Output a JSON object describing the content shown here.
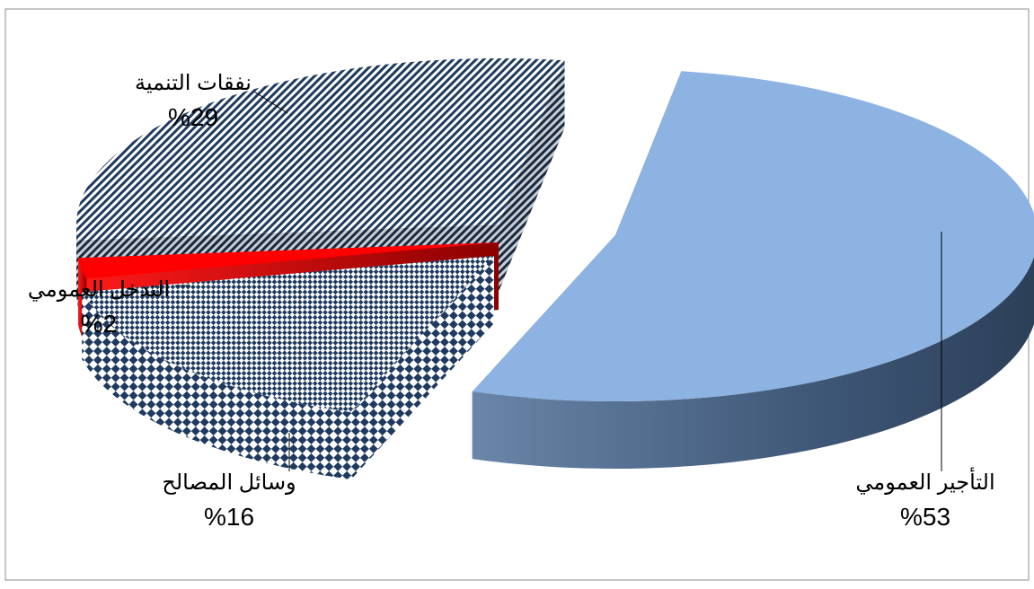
{
  "chart_data": {
    "type": "pie",
    "title": "",
    "slices": [
      {
        "label": "التأجير العمومي",
        "value": 53,
        "value_label": "%53",
        "color": "#8db3e2",
        "pattern": "solid"
      },
      {
        "label": "وسائل المصالح",
        "value": 16,
        "value_label": "%16",
        "color": "#1f3a5f",
        "pattern": "checker"
      },
      {
        "label": "التدخل العمومي",
        "value": 2,
        "value_label": "%2",
        "color": "#ff0000",
        "pattern": "solid"
      },
      {
        "label": "نفقات التنمية",
        "value": 29,
        "value_label": "%29",
        "color": "#1f3a5f",
        "pattern": "diagonal-stripes"
      }
    ],
    "exploded": true,
    "three_d": true,
    "legend": "none"
  }
}
